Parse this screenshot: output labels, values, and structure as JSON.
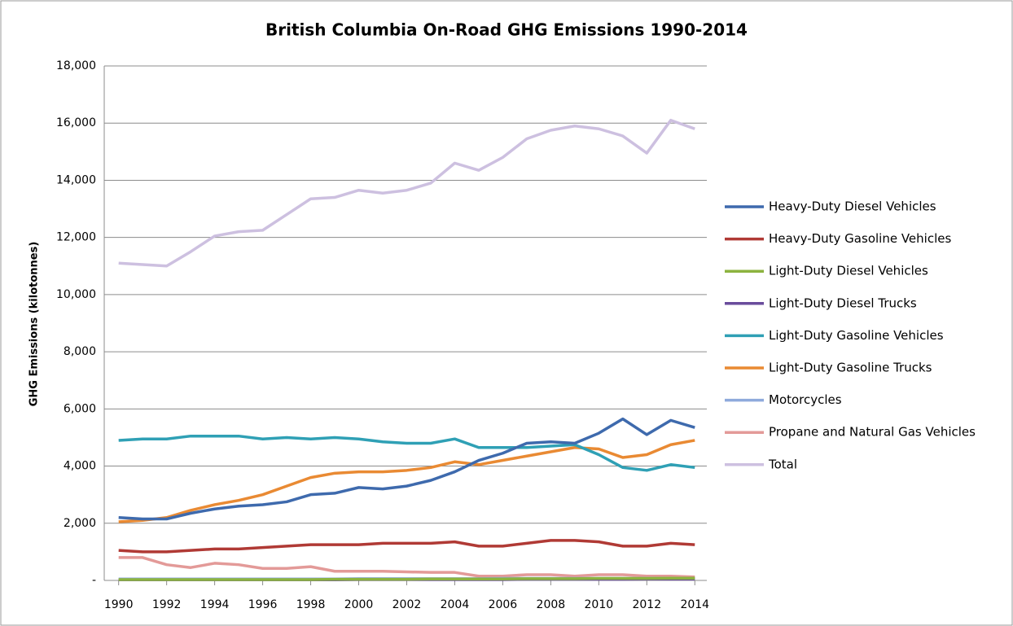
{
  "chart_data": {
    "type": "line",
    "title": "British Columbia On-Road GHG Emissions 1990-2014",
    "y_label": "GHG Emissions  (kilotonnes)",
    "x": [
      1990,
      1991,
      1992,
      1993,
      1994,
      1995,
      1996,
      1997,
      1998,
      1999,
      2000,
      2001,
      2002,
      2003,
      2004,
      2005,
      2006,
      2007,
      2008,
      2009,
      2010,
      2011,
      2012,
      2013,
      2014
    ],
    "xlim": [
      1989.4,
      2014.5
    ],
    "xticks": [
      1990,
      1992,
      1994,
      1996,
      1998,
      2000,
      2002,
      2004,
      2006,
      2008,
      2010,
      2012,
      2014
    ],
    "ylim": [
      0,
      18000
    ],
    "yticks": [
      {
        "value": 0,
        "label": "-"
      },
      {
        "value": 2000,
        "label": "2,000"
      },
      {
        "value": 4000,
        "label": "4,000"
      },
      {
        "value": 6000,
        "label": "6,000"
      },
      {
        "value": 8000,
        "label": "8,000"
      },
      {
        "value": 10000,
        "label": "10,000"
      },
      {
        "value": 12000,
        "label": "12,000"
      },
      {
        "value": 14000,
        "label": "14,000"
      },
      {
        "value": 16000,
        "label": "16,000"
      },
      {
        "value": 18000,
        "label": "18,000"
      }
    ],
    "grid": true,
    "legend": "right",
    "series": [
      {
        "name": "Heavy-Duty Diesel Vehicles",
        "color": "#3e6aad",
        "values": [
          2200,
          2150,
          2150,
          2350,
          2500,
          2600,
          2650,
          2750,
          3000,
          3050,
          3250,
          3200,
          3300,
          3500,
          3800,
          4200,
          4450,
          4800,
          4850,
          4800,
          5150,
          5650,
          5100,
          5600,
          5350
        ]
      },
      {
        "name": "Heavy-Duty Gasoline Vehicles",
        "color": "#b03a35",
        "values": [
          1050,
          1000,
          1000,
          1050,
          1100,
          1100,
          1150,
          1200,
          1250,
          1250,
          1250,
          1300,
          1300,
          1300,
          1350,
          1200,
          1200,
          1300,
          1400,
          1400,
          1350,
          1200,
          1200,
          1300,
          1250
        ]
      },
      {
        "name": "Light-Duty Diesel Vehicles",
        "color": "#8cb33f",
        "values": [
          30,
          30,
          30,
          30,
          30,
          30,
          30,
          30,
          30,
          40,
          40,
          40,
          40,
          50,
          50,
          50,
          50,
          60,
          60,
          60,
          70,
          70,
          70,
          80,
          80
        ]
      },
      {
        "name": "Light-Duty Diesel Trucks",
        "color": "#6a4c9c",
        "values": [
          20,
          20,
          20,
          20,
          20,
          20,
          20,
          20,
          20,
          20,
          30,
          30,
          30,
          30,
          30,
          30,
          30,
          40,
          40,
          40,
          40,
          40,
          50,
          50,
          50
        ]
      },
      {
        "name": "Light-Duty Gasoline Vehicles",
        "color": "#2fa0b5",
        "values": [
          4900,
          4950,
          4950,
          5050,
          5050,
          5050,
          4950,
          5000,
          4950,
          5000,
          4950,
          4850,
          4800,
          4800,
          4950,
          4650,
          4650,
          4650,
          4700,
          4750,
          4400,
          3950,
          3850,
          4050,
          3950
        ]
      },
      {
        "name": "Light-Duty Gasoline Trucks",
        "color": "#e98a33",
        "values": [
          2050,
          2100,
          2200,
          2450,
          2650,
          2800,
          3000,
          3300,
          3600,
          3750,
          3800,
          3800,
          3850,
          3950,
          4150,
          4050,
          4200,
          4350,
          4500,
          4650,
          4600,
          4300,
          4400,
          4750,
          4900
        ]
      },
      {
        "name": "Motorcycles",
        "color": "#8faadc",
        "values": [
          50,
          50,
          50,
          50,
          50,
          50,
          50,
          50,
          50,
          50,
          60,
          60,
          60,
          60,
          60,
          60,
          70,
          70,
          70,
          70,
          70,
          70,
          70,
          70,
          70
        ]
      },
      {
        "name": "Propane and Natural Gas Vehicles",
        "color": "#e39a98",
        "values": [
          800,
          800,
          550,
          450,
          600,
          550,
          420,
          420,
          480,
          320,
          320,
          320,
          300,
          280,
          280,
          150,
          150,
          200,
          200,
          150,
          200,
          200,
          150,
          150,
          120
        ]
      },
      {
        "name": "Total",
        "color": "#cdc0e0",
        "values": [
          11100,
          11050,
          11000,
          11500,
          12050,
          12200,
          12250,
          12800,
          13350,
          13400,
          13650,
          13550,
          13650,
          13900,
          14600,
          14350,
          14800,
          15450,
          15750,
          15900,
          15800,
          15550,
          14950,
          16100,
          15800
        ]
      }
    ]
  }
}
